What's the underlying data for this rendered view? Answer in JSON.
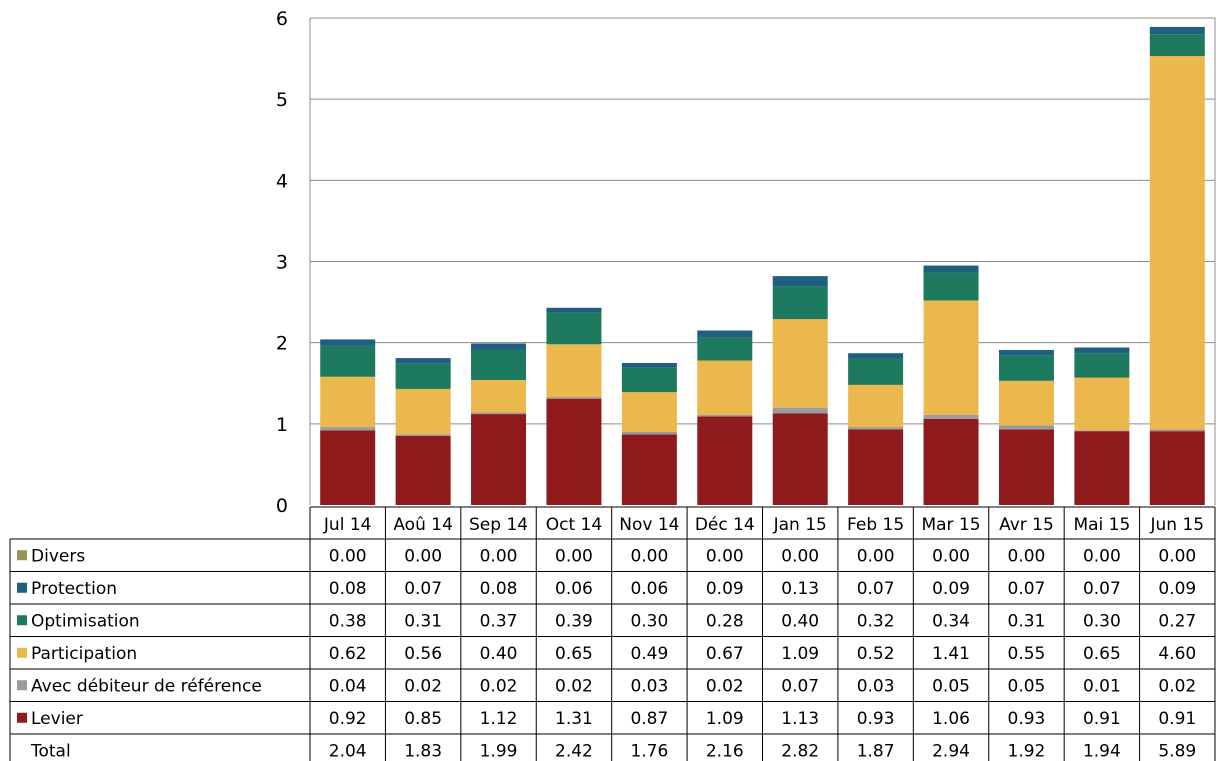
{
  "chart_data": {
    "type": "bar",
    "stacked": true,
    "categories": [
      "Jul 14",
      "Aoû 14",
      "Sep 14",
      "Oct 14",
      "Nov 14",
      "Déc 14",
      "Jan 15",
      "Feb 15",
      "Mar 15",
      "Avr 15",
      "Mai 15",
      "Jun 15"
    ],
    "series": [
      {
        "name": "Levier",
        "color": "#8e1a1c",
        "values": [
          "0.92",
          "0.85",
          "1.12",
          "1.31",
          "0.87",
          "1.09",
          "1.13",
          "0.93",
          "1.06",
          "0.93",
          "0.91",
          "0.91"
        ]
      },
      {
        "name": "Avec débiteur de référence",
        "color": "#9b9b9b",
        "values": [
          "0.04",
          "0.02",
          "0.02",
          "0.02",
          "0.03",
          "0.02",
          "0.07",
          "0.03",
          "0.05",
          "0.05",
          "0.01",
          "0.02"
        ]
      },
      {
        "name": "Participation",
        "color": "#ebb84e",
        "values": [
          "0.62",
          "0.56",
          "0.40",
          "0.65",
          "0.49",
          "0.67",
          "1.09",
          "0.52",
          "1.41",
          "0.55",
          "0.65",
          "4.60"
        ]
      },
      {
        "name": "Optimisation",
        "color": "#1e7a5f",
        "values": [
          "0.38",
          "0.31",
          "0.37",
          "0.39",
          "0.30",
          "0.28",
          "0.40",
          "0.32",
          "0.34",
          "0.31",
          "0.30",
          "0.27"
        ]
      },
      {
        "name": "Protection",
        "color": "#1f5f7f",
        "values": [
          "0.08",
          "0.07",
          "0.08",
          "0.06",
          "0.06",
          "0.09",
          "0.13",
          "0.07",
          "0.09",
          "0.07",
          "0.07",
          "0.09"
        ]
      },
      {
        "name": "Divers",
        "color": "#9a9455",
        "values": [
          "0.00",
          "0.00",
          "0.00",
          "0.00",
          "0.00",
          "0.00",
          "0.00",
          "0.00",
          "0.00",
          "0.00",
          "0.00",
          "0.00"
        ]
      }
    ],
    "table_rows": [
      "Divers",
      "Protection",
      "Optimisation",
      "Participation",
      "Avec débiteur de référence",
      "Levier"
    ],
    "total": {
      "name": "Total",
      "values": [
        "2.04",
        "1.83",
        "1.99",
        "2.42",
        "1.76",
        "2.16",
        "2.82",
        "1.87",
        "2.94",
        "1.92",
        "1.94",
        "5.89"
      ]
    },
    "ylim": [
      0,
      6
    ],
    "yticks": [
      "0",
      "1",
      "2",
      "3",
      "4",
      "5",
      "6"
    ],
    "grid": true,
    "legend": "data-table",
    "title": "",
    "xlabel": "",
    "ylabel": ""
  }
}
